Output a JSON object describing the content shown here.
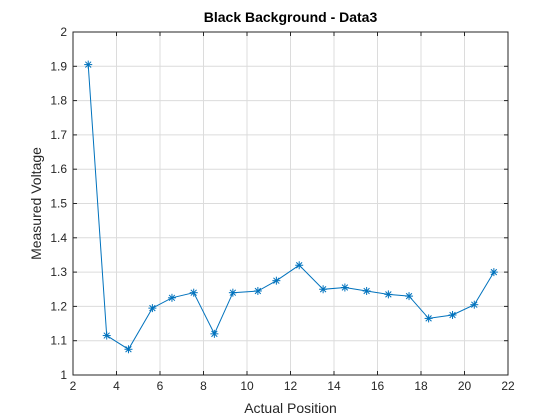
{
  "chart_data": {
    "type": "line",
    "title": "Black Background - Data3",
    "xlabel": "Actual Position",
    "ylabel": "Measured Voltage",
    "xlim": [
      2,
      22
    ],
    "ylim": [
      1,
      2
    ],
    "xticks": [
      2,
      4,
      6,
      8,
      10,
      12,
      14,
      16,
      18,
      20,
      22
    ],
    "yticks": [
      1,
      1.1,
      1.2,
      1.3,
      1.4,
      1.5,
      1.6,
      1.7,
      1.8,
      1.9,
      2
    ],
    "xtick_labels": [
      "2",
      "4",
      "6",
      "8",
      "10",
      "12",
      "14",
      "16",
      "18",
      "20",
      "22"
    ],
    "ytick_labels": [
      "1",
      "1.1",
      "1.2",
      "1.3",
      "1.4",
      "1.5",
      "1.6",
      "1.7",
      "1.8",
      "1.9",
      "2"
    ],
    "grid": true,
    "marker": "asterisk",
    "series": [
      {
        "color": "#0072bd",
        "x": [
          2.7,
          3.55,
          4.55,
          5.65,
          6.55,
          7.55,
          8.5,
          9.35,
          10.5,
          11.35,
          12.4,
          13.5,
          14.5,
          15.5,
          16.5,
          17.45,
          18.35,
          19.45,
          20.45,
          21.35
        ],
        "y": [
          1.905,
          1.115,
          1.075,
          1.195,
          1.225,
          1.24,
          1.12,
          1.24,
          1.245,
          1.275,
          1.32,
          1.25,
          1.255,
          1.245,
          1.235,
          1.23,
          1.165,
          1.175,
          1.205,
          1.3
        ]
      }
    ]
  }
}
